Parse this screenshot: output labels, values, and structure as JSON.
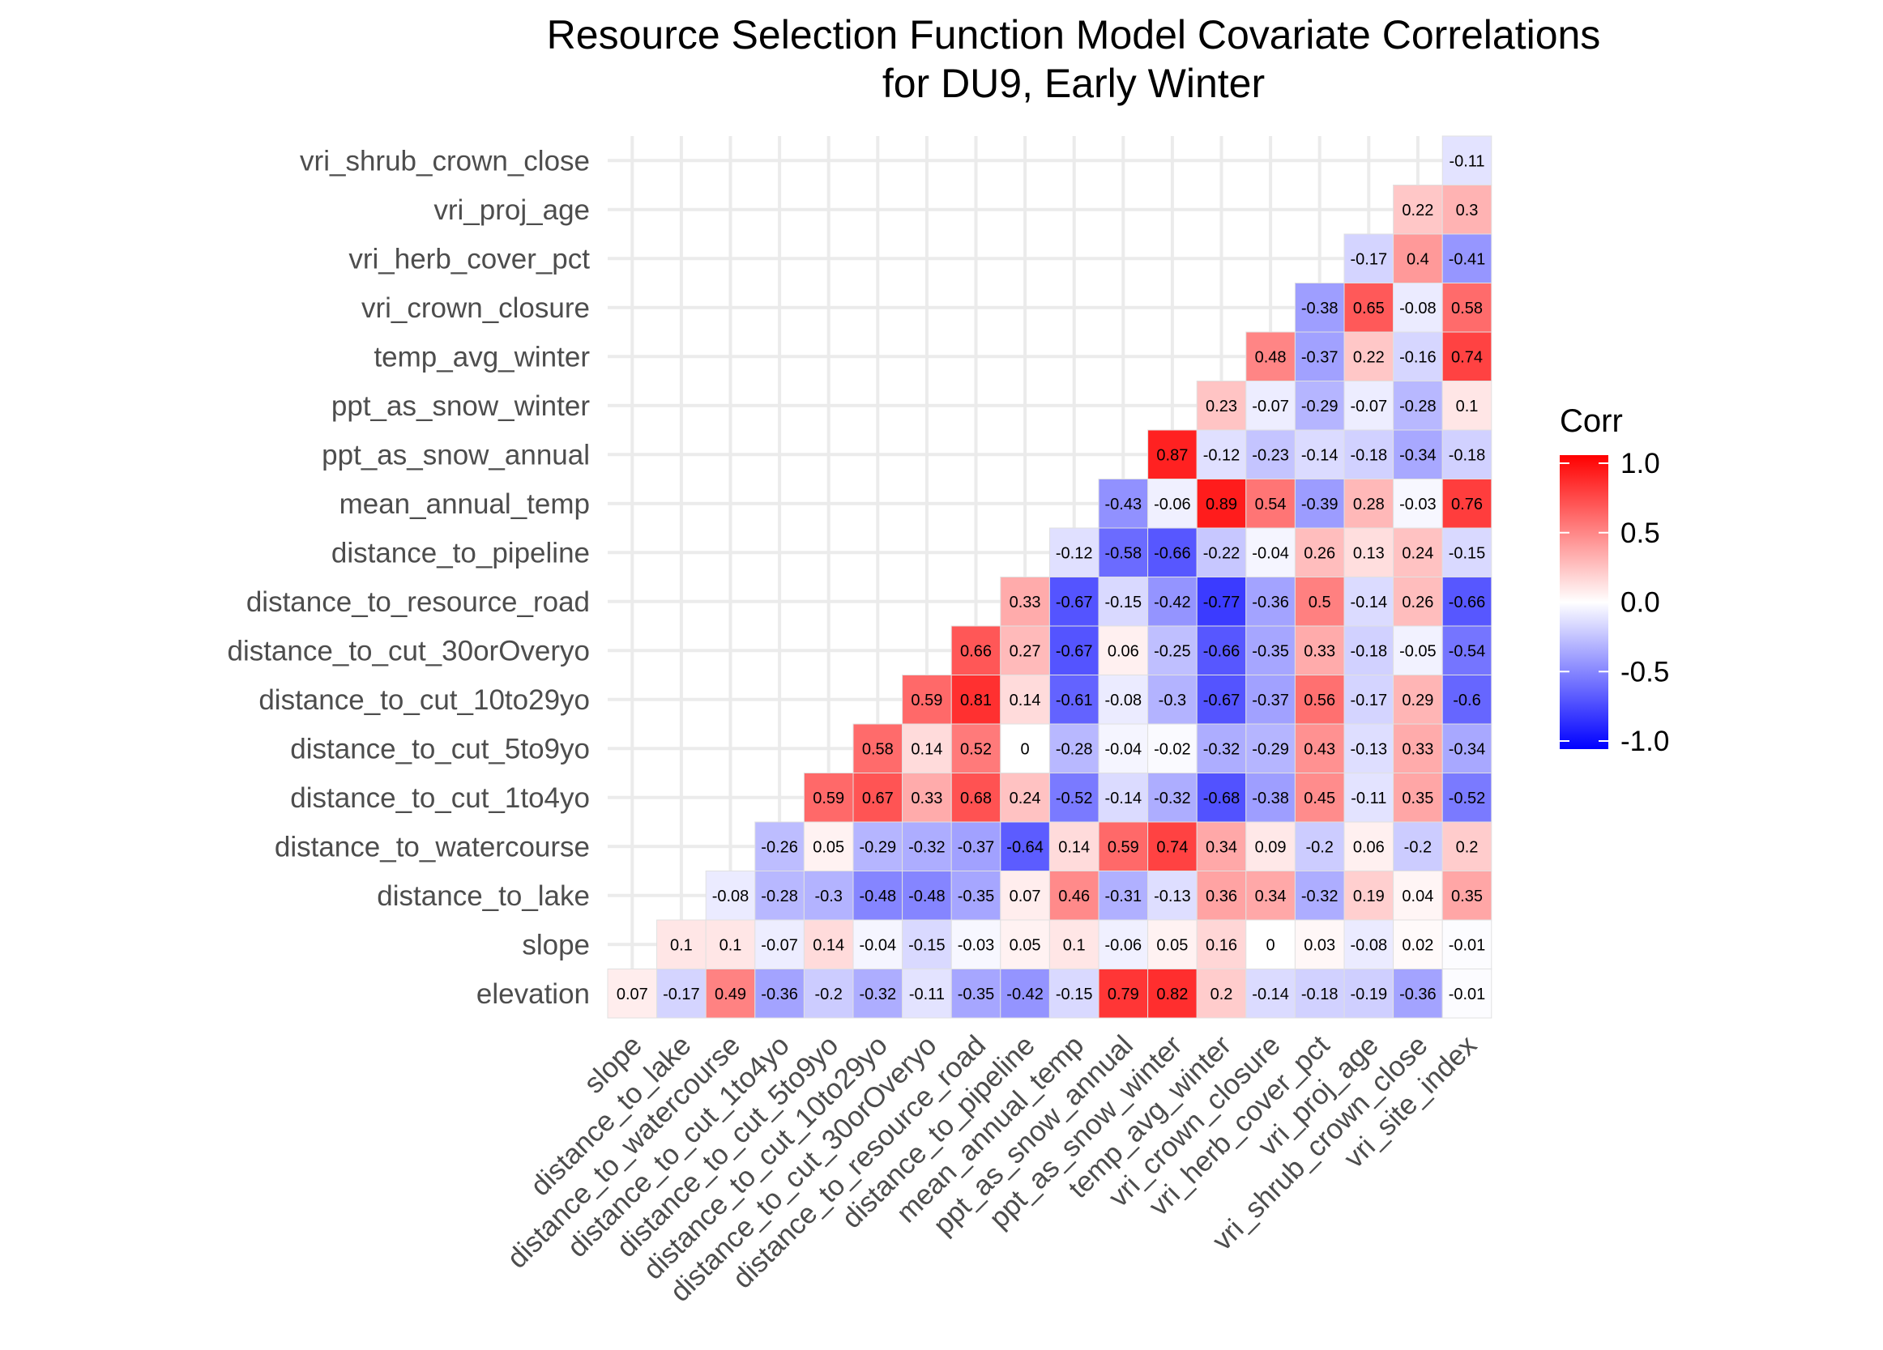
{
  "chart_data": {
    "type": "heatmap",
    "title": "Resource Selection Function Model Covariate Correlations",
    "subtitle": "for DU9, Early Winter",
    "y_categories": [
      "elevation",
      "slope",
      "distance_to_lake",
      "distance_to_watercourse",
      "distance_to_cut_1to4yo",
      "distance_to_cut_5to9yo",
      "distance_to_cut_10to29yo",
      "distance_to_cut_30orOveryo",
      "distance_to_resource_road",
      "distance_to_pipeline",
      "mean_annual_temp",
      "ppt_as_snow_annual",
      "ppt_as_snow_winter",
      "temp_avg_winter",
      "vri_crown_closure",
      "vri_herb_cover_pct",
      "vri_proj_age",
      "vri_shrub_crown_close"
    ],
    "x_categories": [
      "slope",
      "distance_to_lake",
      "distance_to_watercourse",
      "distance_to_cut_1to4yo",
      "distance_to_cut_5to9yo",
      "distance_to_cut_10to29yo",
      "distance_to_cut_30orOveryo",
      "distance_to_resource_road",
      "distance_to_pipeline",
      "mean_annual_temp",
      "ppt_as_snow_annual",
      "ppt_as_snow_winter",
      "temp_avg_winter",
      "vri_crown_closure",
      "vri_herb_cover_pct",
      "vri_proj_age",
      "vri_shrub_crown_close",
      "vri_site_index"
    ],
    "values": [
      [
        0.07,
        -0.17,
        0.49,
        -0.36,
        -0.2,
        -0.32,
        -0.11,
        -0.35,
        -0.42,
        -0.15,
        0.79,
        0.82,
        0.2,
        -0.14,
        -0.18,
        -0.19,
        -0.36,
        -0.01
      ],
      [
        0.1,
        0.1,
        -0.07,
        0.14,
        -0.04,
        -0.15,
        -0.03,
        0.05,
        0.1,
        -0.06,
        0.05,
        0.16,
        0,
        0.03,
        -0.08,
        0.02,
        -0.01
      ],
      [
        -0.08,
        -0.28,
        -0.3,
        -0.48,
        -0.48,
        -0.35,
        0.07,
        0.46,
        -0.31,
        -0.13,
        0.36,
        0.34,
        -0.32,
        0.19,
        0.04,
        0.35
      ],
      [
        -0.26,
        0.05,
        -0.29,
        -0.32,
        -0.37,
        -0.64,
        0.14,
        0.59,
        0.74,
        0.34,
        0.09,
        -0.2,
        0.06,
        -0.2,
        0.2
      ],
      [
        0.59,
        0.67,
        0.33,
        0.68,
        0.24,
        -0.52,
        -0.14,
        -0.32,
        -0.68,
        -0.38,
        0.45,
        -0.11,
        0.35,
        -0.52
      ],
      [
        0.58,
        0.14,
        0.52,
        0,
        -0.28,
        -0.04,
        -0.02,
        -0.32,
        -0.29,
        0.43,
        -0.13,
        0.33,
        -0.34
      ],
      [
        0.59,
        0.81,
        0.14,
        -0.61,
        -0.08,
        -0.3,
        -0.67,
        -0.37,
        0.56,
        -0.17,
        0.29,
        -0.6
      ],
      [
        0.66,
        0.27,
        -0.67,
        0.06,
        -0.25,
        -0.66,
        -0.35,
        0.33,
        -0.18,
        -0.05,
        -0.54
      ],
      [
        0.33,
        -0.67,
        -0.15,
        -0.42,
        -0.77,
        -0.36,
        0.5,
        -0.14,
        0.26,
        -0.66
      ],
      [
        -0.12,
        -0.58,
        -0.66,
        -0.22,
        -0.04,
        0.26,
        0.13,
        0.24,
        -0.15
      ],
      [
        -0.43,
        -0.06,
        0.89,
        0.54,
        -0.39,
        0.28,
        -0.03,
        0.76
      ],
      [
        0.87,
        -0.12,
        -0.23,
        -0.14,
        -0.18,
        -0.34,
        -0.18
      ],
      [
        0.23,
        -0.07,
        -0.29,
        -0.07,
        -0.28,
        0.1
      ],
      [
        0.48,
        -0.37,
        0.22,
        -0.16,
        0.74
      ],
      [
        -0.38,
        0.65,
        -0.08,
        0.58
      ],
      [
        -0.17,
        0.4,
        -0.41
      ],
      [
        0.22,
        0.3
      ],
      [
        -0.11
      ]
    ],
    "color_scale": {
      "low": "#0000ff",
      "mid": "#ffffff",
      "high": "#ff0000",
      "limits": [
        -1,
        1
      ]
    },
    "legend": {
      "title": "Corr",
      "ticks": [
        "1.0",
        "0.5",
        "0.0",
        "-0.5",
        "-1.0"
      ],
      "placement": "right"
    },
    "grid": true
  }
}
